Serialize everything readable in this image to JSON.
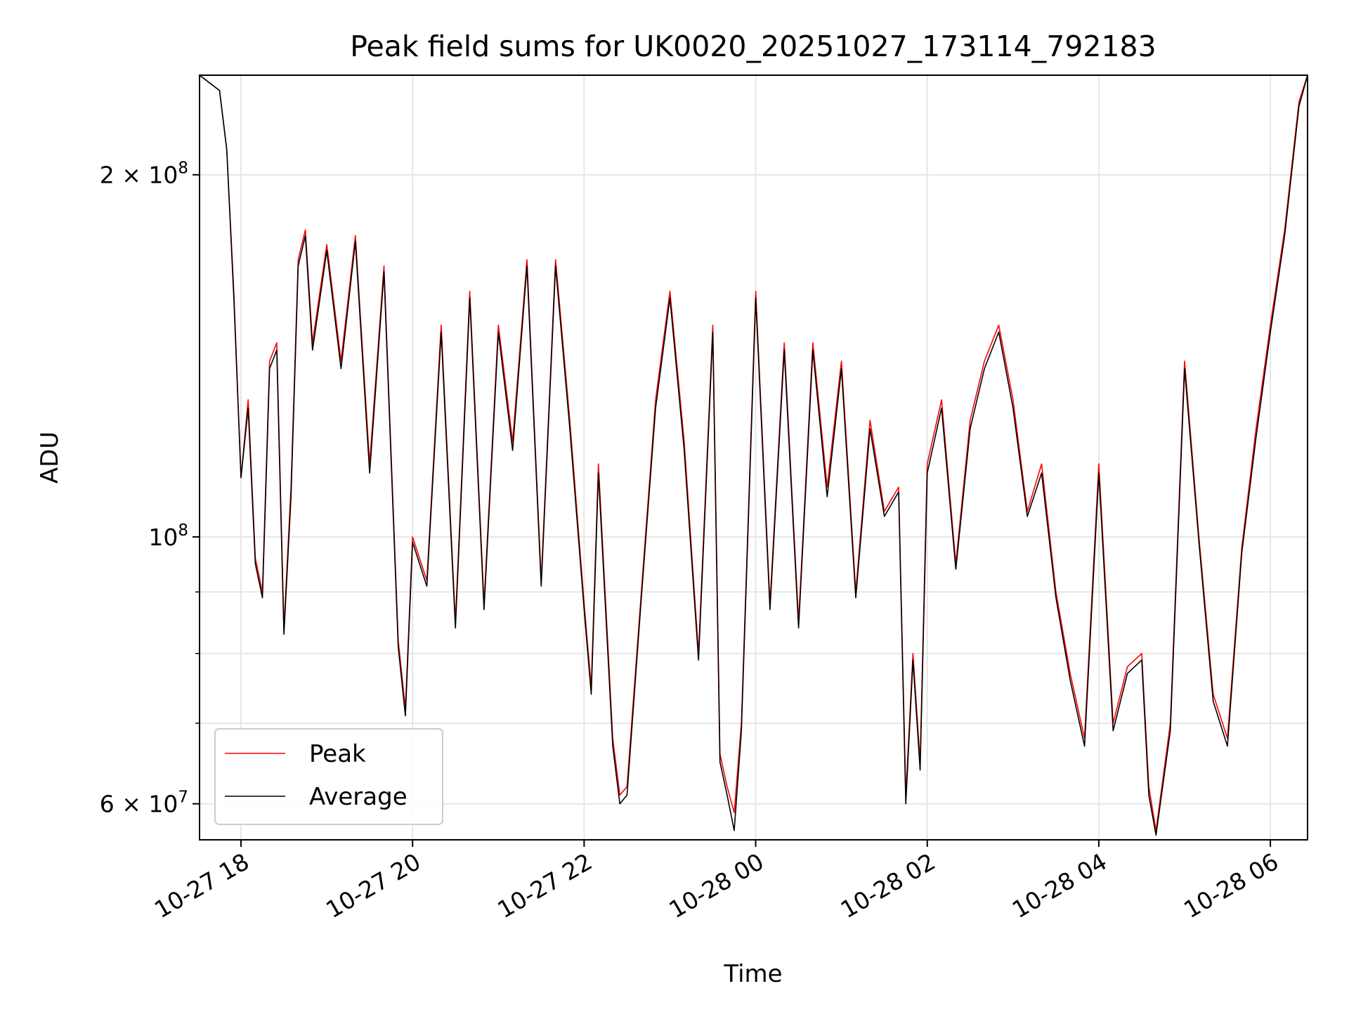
{
  "chart_data": {
    "type": "line",
    "title": "Peak field sums for UK0020_20251027_173114_792183",
    "xlabel": "Time",
    "ylabel": "ADU",
    "yscale": "log",
    "xlim": [
      "2025-10-27 17:31",
      "2025-10-28 06:26"
    ],
    "ylim": [
      56000000,
      242000000
    ],
    "grid": true,
    "legend_position": "lower-left",
    "x_tick_labels": [
      "10-27 18",
      "10-27 20",
      "10-27 22",
      "10-28 00",
      "10-28 02",
      "10-28 04",
      "10-28 06"
    ],
    "y_tick_labels": [
      {
        "value": 200000000,
        "mantissa": "2",
        "exponent": "8"
      },
      {
        "value": 100000000,
        "mantissa": "",
        "exponent": "8"
      },
      {
        "value": 60000000,
        "mantissa": "6",
        "exponent": "7"
      }
    ],
    "y_minor_ticks": [
      70000000,
      80000000,
      90000000
    ],
    "x": [
      "2025-10-27 17:31",
      "2025-10-27 17:45",
      "2025-10-27 17:50",
      "2025-10-27 17:55",
      "2025-10-27 18:00",
      "2025-10-27 18:05",
      "2025-10-27 18:10",
      "2025-10-27 18:15",
      "2025-10-27 18:20",
      "2025-10-27 18:25",
      "2025-10-27 18:30",
      "2025-10-27 18:35",
      "2025-10-27 18:40",
      "2025-10-27 18:45",
      "2025-10-27 18:50",
      "2025-10-27 19:00",
      "2025-10-27 19:10",
      "2025-10-27 19:20",
      "2025-10-27 19:30",
      "2025-10-27 19:40",
      "2025-10-27 19:50",
      "2025-10-27 19:55",
      "2025-10-27 20:00",
      "2025-10-27 20:10",
      "2025-10-27 20:20",
      "2025-10-27 20:30",
      "2025-10-27 20:40",
      "2025-10-27 20:50",
      "2025-10-27 21:00",
      "2025-10-27 21:10",
      "2025-10-27 21:20",
      "2025-10-27 21:30",
      "2025-10-27 21:40",
      "2025-10-27 21:50",
      "2025-10-27 22:00",
      "2025-10-27 22:05",
      "2025-10-27 22:10",
      "2025-10-27 22:20",
      "2025-10-27 22:25",
      "2025-10-27 22:30",
      "2025-10-27 22:40",
      "2025-10-27 22:50",
      "2025-10-27 23:00",
      "2025-10-27 23:10",
      "2025-10-27 23:20",
      "2025-10-27 23:30",
      "2025-10-27 23:35",
      "2025-10-27 23:40",
      "2025-10-27 23:45",
      "2025-10-27 23:50",
      "2025-10-28 00:00",
      "2025-10-28 00:10",
      "2025-10-28 00:20",
      "2025-10-28 00:30",
      "2025-10-28 00:40",
      "2025-10-28 00:50",
      "2025-10-28 01:00",
      "2025-10-28 01:10",
      "2025-10-28 01:20",
      "2025-10-28 01:30",
      "2025-10-28 01:40",
      "2025-10-28 01:45",
      "2025-10-28 01:50",
      "2025-10-28 01:55",
      "2025-10-28 02:00",
      "2025-10-28 02:10",
      "2025-10-28 02:20",
      "2025-10-28 02:30",
      "2025-10-28 02:40",
      "2025-10-28 02:50",
      "2025-10-28 03:00",
      "2025-10-28 03:10",
      "2025-10-28 03:20",
      "2025-10-28 03:30",
      "2025-10-28 03:40",
      "2025-10-28 03:50",
      "2025-10-28 04:00",
      "2025-10-28 04:10",
      "2025-10-28 04:20",
      "2025-10-28 04:30",
      "2025-10-28 04:35",
      "2025-10-28 04:40",
      "2025-10-28 04:50",
      "2025-10-28 05:00",
      "2025-10-28 05:10",
      "2025-10-28 05:20",
      "2025-10-28 05:30",
      "2025-10-28 05:40",
      "2025-10-28 05:50",
      "2025-10-28 06:00",
      "2025-10-28 06:10",
      "2025-10-28 06:20",
      "2025-10-28 06:26"
    ],
    "series": [
      {
        "name": "Peak",
        "color": "#ff0000",
        "values": [
          242000000,
          235000000,
          210000000,
          160000000,
          112000000,
          130000000,
          96000000,
          90000000,
          140000000,
          145000000,
          84000000,
          110000000,
          170000000,
          180000000,
          145000000,
          175000000,
          140000000,
          178000000,
          115000000,
          168000000,
          82000000,
          72000000,
          100000000,
          92000000,
          150000000,
          85000000,
          160000000,
          88000000,
          150000000,
          120000000,
          170000000,
          92000000,
          170000000,
          125000000,
          88000000,
          75000000,
          115000000,
          68000000,
          61000000,
          62000000,
          90000000,
          130000000,
          160000000,
          120000000,
          80000000,
          150000000,
          66000000,
          62000000,
          59000000,
          70000000,
          160000000,
          88000000,
          145000000,
          85000000,
          145000000,
          110000000,
          140000000,
          90000000,
          125000000,
          105000000,
          110000000,
          61000000,
          80000000,
          65000000,
          115000000,
          130000000,
          95000000,
          125000000,
          140000000,
          150000000,
          130000000,
          105000000,
          115000000,
          90000000,
          77000000,
          68000000,
          115000000,
          70000000,
          78000000,
          80000000,
          62000000,
          57000000,
          70000000,
          140000000,
          100000000,
          74000000,
          68000000,
          98000000,
          123000000,
          150000000,
          180000000,
          230000000,
          242000000
        ]
      },
      {
        "name": "Average",
        "color": "#000000",
        "values": [
          242000000,
          235000000,
          210000000,
          158000000,
          112000000,
          128000000,
          95000000,
          89000000,
          138000000,
          143000000,
          83000000,
          108000000,
          168000000,
          178000000,
          143000000,
          173000000,
          138000000,
          176000000,
          113000000,
          166000000,
          81000000,
          71000000,
          99000000,
          91000000,
          148000000,
          84000000,
          158000000,
          87000000,
          148000000,
          118000000,
          168000000,
          91000000,
          168000000,
          123000000,
          87000000,
          74000000,
          113000000,
          67000000,
          60000000,
          61000000,
          89000000,
          128000000,
          158000000,
          118000000,
          79000000,
          148000000,
          65000000,
          61000000,
          57000000,
          69000000,
          158000000,
          87000000,
          143000000,
          84000000,
          143000000,
          108000000,
          138000000,
          89000000,
          123000000,
          104000000,
          109000000,
          60000000,
          79000000,
          64000000,
          113000000,
          128000000,
          94000000,
          123000000,
          138000000,
          148000000,
          128000000,
          104000000,
          113000000,
          89000000,
          76000000,
          67000000,
          113000000,
          69000000,
          77000000,
          79000000,
          61000000,
          56500000,
          69000000,
          138000000,
          99000000,
          73000000,
          67000000,
          97000000,
          121000000,
          148000000,
          178000000,
          228000000,
          242000000
        ]
      }
    ]
  }
}
